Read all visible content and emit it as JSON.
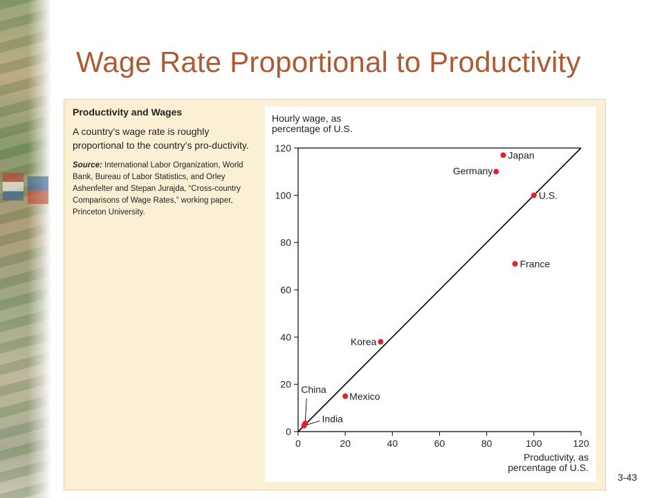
{
  "slide": {
    "title": "Wage Rate Proportional to Productivity",
    "number": "3-43"
  },
  "figure": {
    "heading": "Productivity and Wages",
    "caption": "A country’s wage rate is roughly proportional to the country’s pro-ductivity.",
    "source_label": "Source:",
    "source_text": "International Labor Organization, World Bank, Bureau of Labor Statistics, and Orley Ashenfelter and Stepan Jurajda, “Cross-country Comparisons of Wage Rates,” working paper, Princeton University."
  },
  "colors": {
    "title": "#b05a33",
    "panel_bg": "#fbf0d3",
    "point": "#e5202e",
    "line": "#000000"
  },
  "chart_data": {
    "type": "scatter",
    "title": "",
    "ylabel": [
      "Hourly wage, as",
      "percentage of U.S."
    ],
    "xlabel": [
      "Productivity, as",
      "percentage of U.S."
    ],
    "xlim": [
      0,
      120
    ],
    "ylim": [
      0,
      120
    ],
    "xticks": [
      0,
      20,
      40,
      60,
      80,
      100,
      120
    ],
    "yticks": [
      0,
      20,
      40,
      60,
      80,
      100,
      120
    ],
    "grid": false,
    "reference_line": {
      "from": [
        0,
        0
      ],
      "to": [
        120,
        120
      ]
    },
    "points": [
      {
        "label": "Japan",
        "x": 87,
        "y": 117
      },
      {
        "label": "Germany",
        "x": 84,
        "y": 110
      },
      {
        "label": "U.S.",
        "x": 100,
        "y": 100
      },
      {
        "label": "France",
        "x": 92,
        "y": 71
      },
      {
        "label": "Korea",
        "x": 35,
        "y": 38
      },
      {
        "label": "Mexico",
        "x": 20,
        "y": 15
      },
      {
        "label": "China",
        "x": 3,
        "y": 3.5
      },
      {
        "label": "India",
        "x": 2.5,
        "y": 2.5
      }
    ]
  }
}
